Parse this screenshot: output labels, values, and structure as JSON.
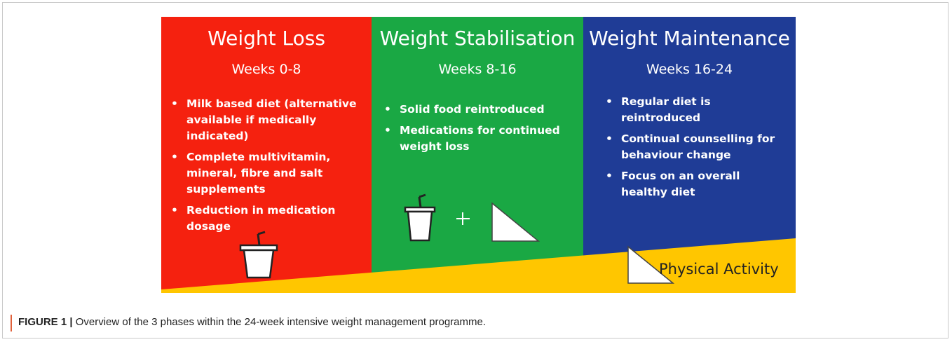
{
  "panels": [
    {
      "title": "Weight Loss",
      "subtitle": "Weeks 0-8",
      "bullets": [
        "Milk based diet (alternative available if medically indicated)",
        "Complete multivitamin, mineral, fibre and salt supplements",
        "Reduction in medication dosage"
      ]
    },
    {
      "title": "Weight Stabilisation",
      "subtitle": "Weeks 8-16",
      "bullets": [
        "Solid food reintroduced",
        "Medications for continued weight loss"
      ]
    },
    {
      "title": "Weight Maintenance",
      "subtitle": "Weeks 16-24",
      "bullets": [
        "Regular diet is reintroduced",
        "Continual counselling for behaviour change",
        "Focus on an overall healthy diet"
      ]
    }
  ],
  "footer": "Physical Activity",
  "caption": {
    "label": "FIGURE 1 |",
    "text": "Overview of the 3 phases within the 24-week intensive weight management programme."
  }
}
